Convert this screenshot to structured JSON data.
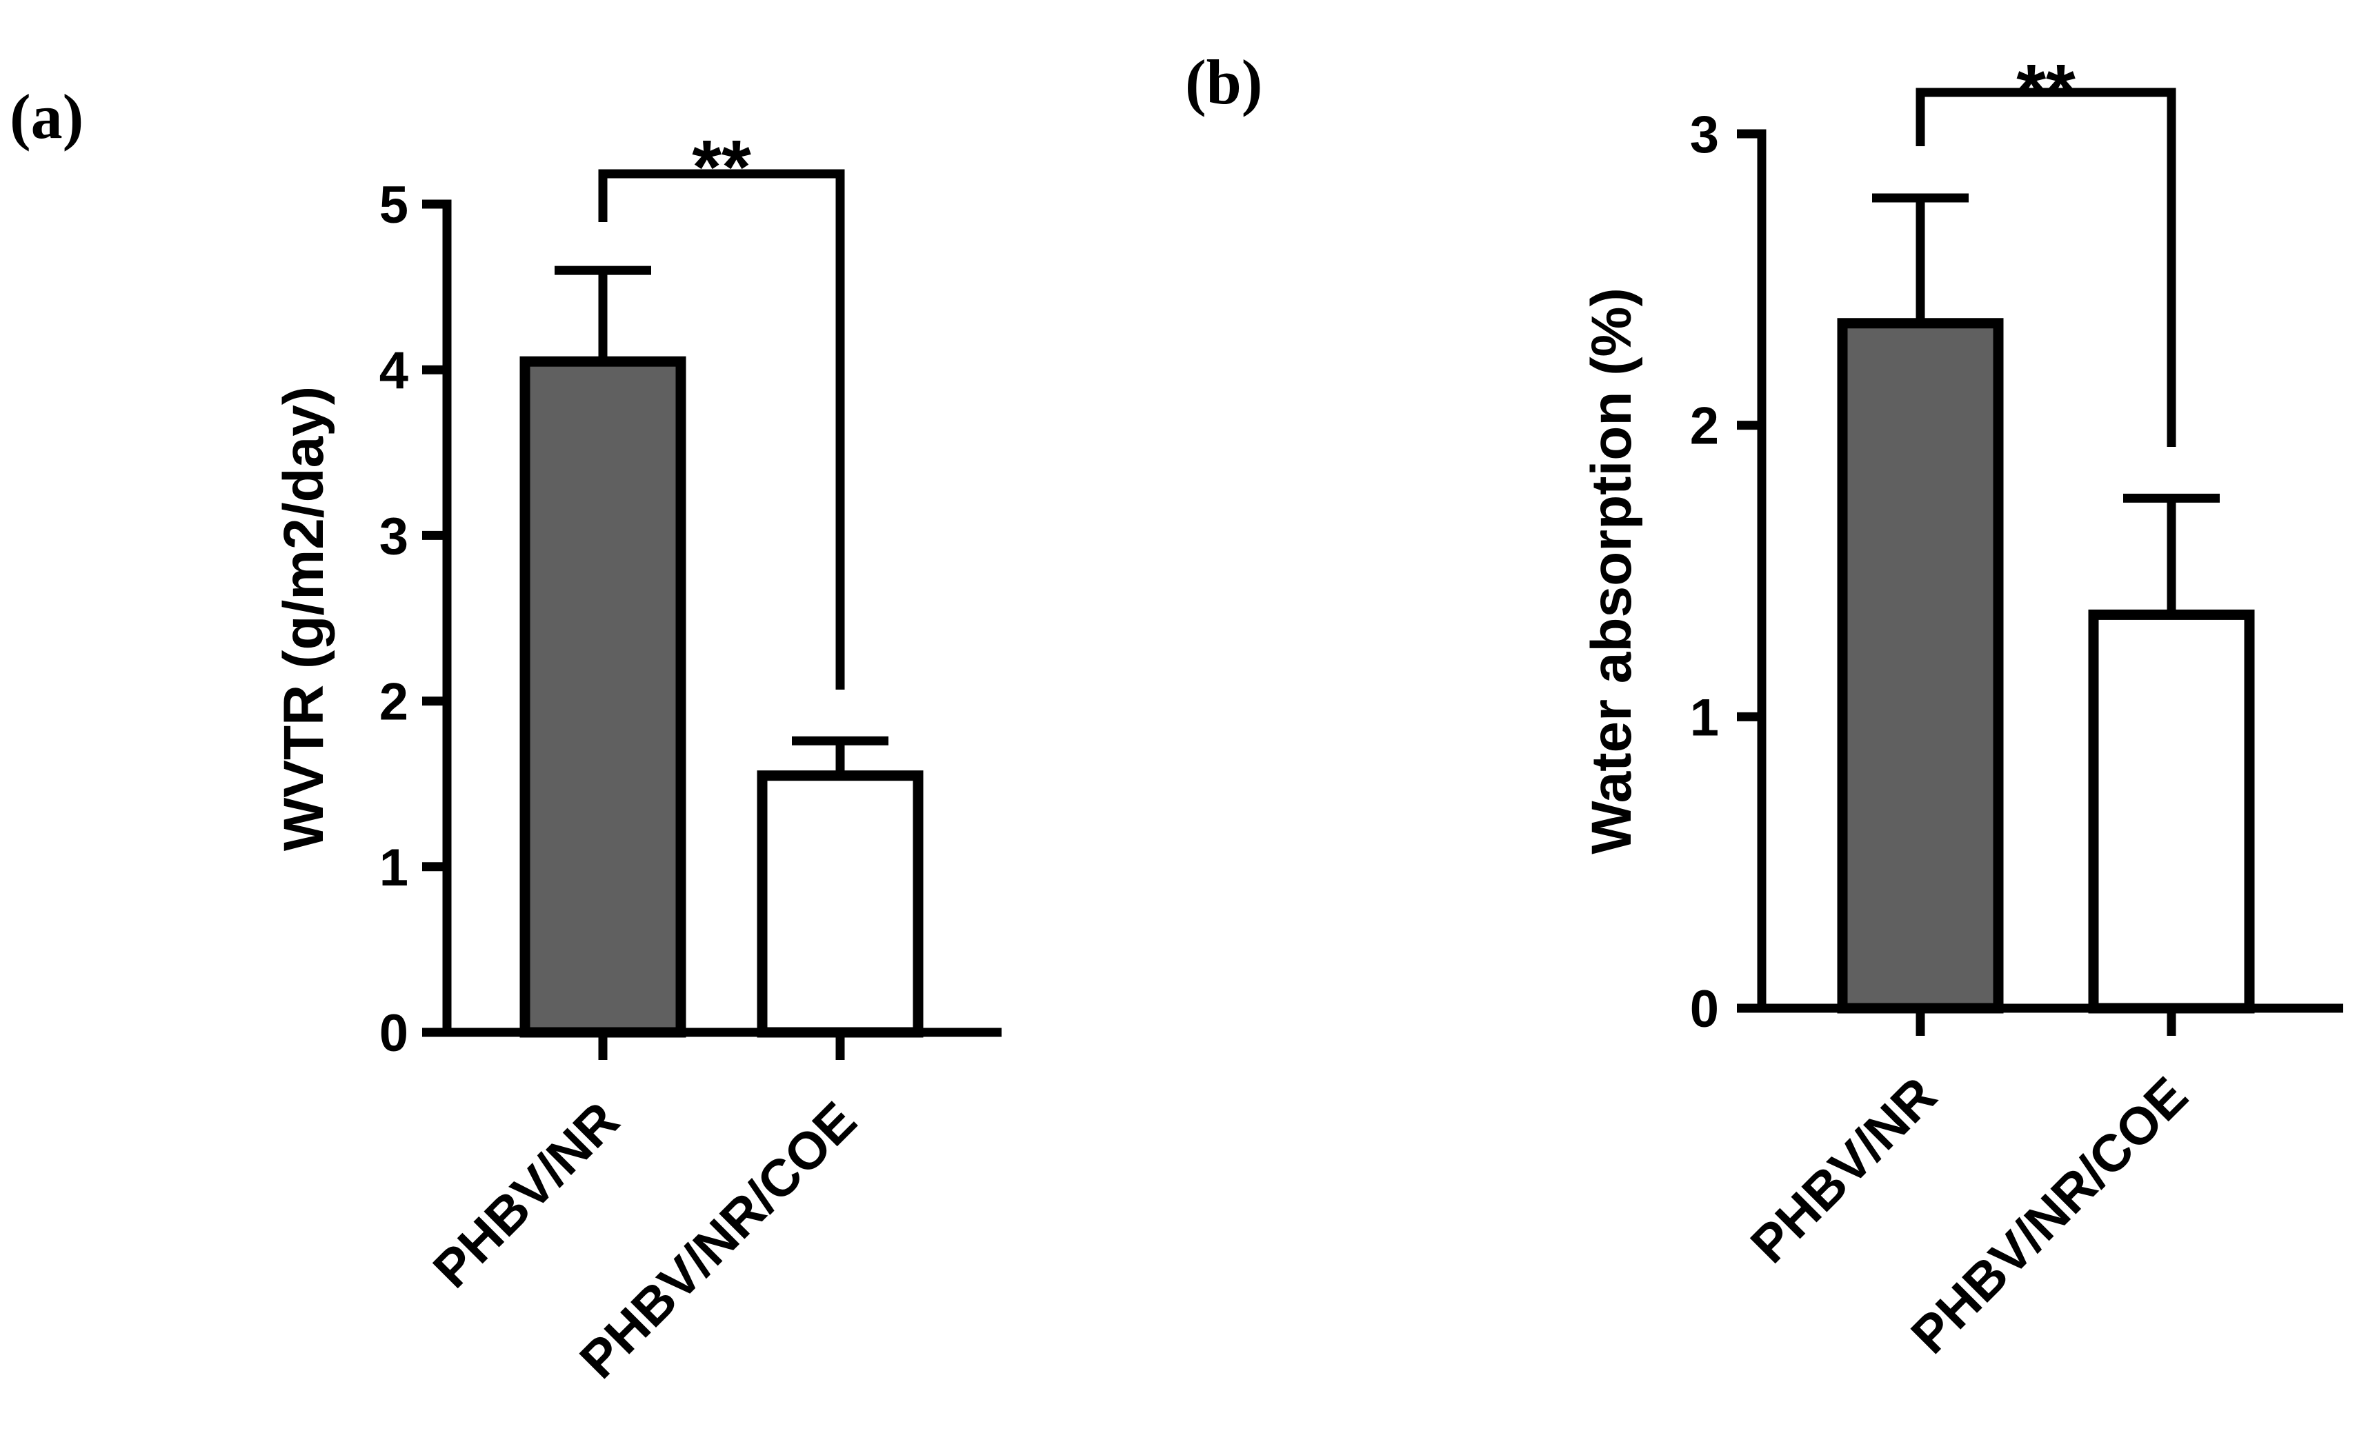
{
  "chart_data": [
    {
      "panel": "(a)",
      "type": "bar",
      "categories": [
        "PHBV/NR",
        "PHBV/NR/COE"
      ],
      "values": [
        4.05,
        1.55
      ],
      "errors": [
        0.55,
        0.21
      ],
      "ylabel": "WVTR  (g/m2/day)",
      "ylim": [
        0,
        5
      ],
      "yticks": [
        "0",
        "1",
        "2",
        "3",
        "4",
        "5"
      ],
      "bar_colors": [
        "#606060",
        "#ffffff"
      ],
      "significance": "**",
      "grid": false
    },
    {
      "panel": "(b)",
      "type": "bar",
      "categories": [
        "PHBV/NR",
        "PHBV/NR/COE"
      ],
      "values": [
        2.35,
        1.35
      ],
      "errors": [
        0.43,
        0.4
      ],
      "ylabel": "Water absorption (%)",
      "ylim": [
        0,
        3
      ],
      "yticks": [
        "0",
        "1",
        "2",
        "3"
      ],
      "bar_colors": [
        "#606060",
        "#ffffff"
      ],
      "significance": "**",
      "grid": false
    }
  ]
}
